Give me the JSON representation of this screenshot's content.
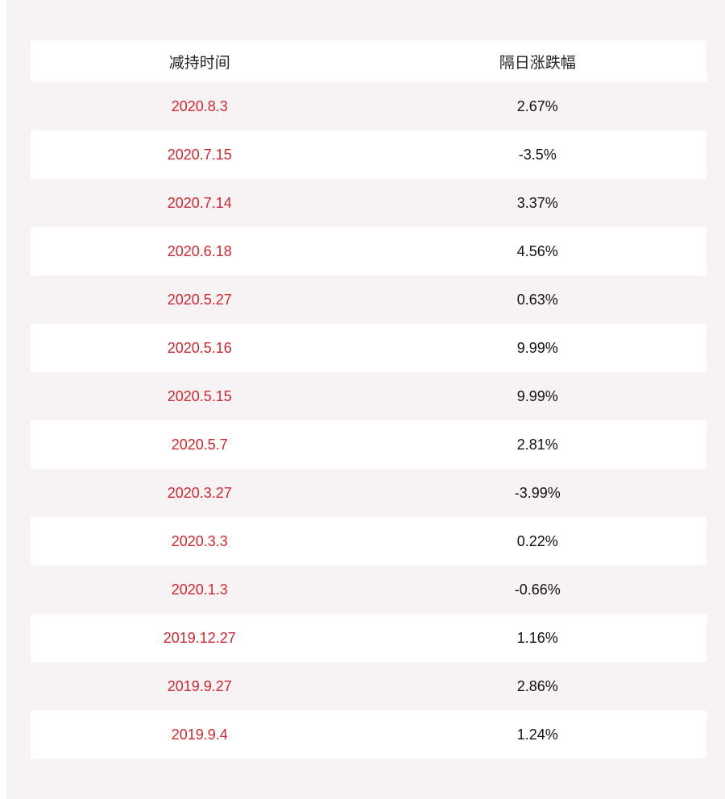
{
  "table": {
    "headers": [
      "减持时间",
      "隔日涨跌幅"
    ],
    "rows": [
      {
        "date": "2020.8.3",
        "change": "2.67%"
      },
      {
        "date": "2020.7.15",
        "change": "-3.5%"
      },
      {
        "date": "2020.7.14",
        "change": "3.37%"
      },
      {
        "date": "2020.6.18",
        "change": "4.56%"
      },
      {
        "date": "2020.5.27",
        "change": "0.63%"
      },
      {
        "date": "2020.5.16",
        "change": "9.99%"
      },
      {
        "date": "2020.5.15",
        "change": "9.99%"
      },
      {
        "date": "2020.5.7",
        "change": "2.81%"
      },
      {
        "date": "2020.3.27",
        "change": "-3.99%"
      },
      {
        "date": "2020.3.3",
        "change": "0.22%"
      },
      {
        "date": "2020.1.3",
        "change": "-0.66%"
      },
      {
        "date": "2019.12.27",
        "change": "1.16%"
      },
      {
        "date": "2019.9.27",
        "change": "2.86%"
      },
      {
        "date": "2019.9.4",
        "change": "1.24%"
      }
    ]
  },
  "colors": {
    "date_text": "#d0282e",
    "value_text": "#111111",
    "stripe": "#f7f3f4",
    "row": "#ffffff"
  }
}
